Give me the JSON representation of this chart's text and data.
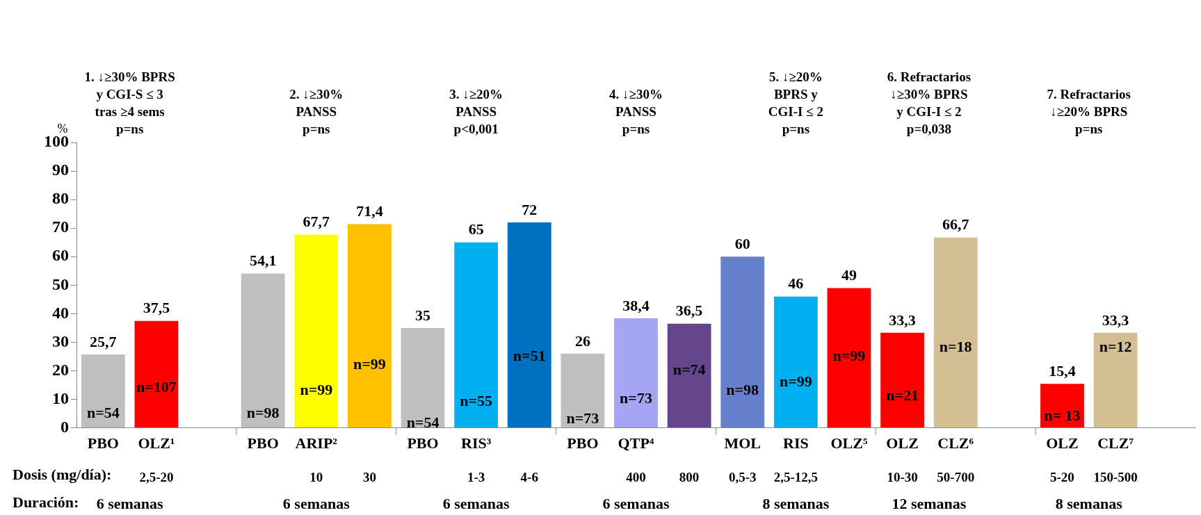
{
  "chart_data": {
    "type": "bar",
    "ylabel": "%",
    "categories": [
      "PBO",
      "OLZ¹",
      null,
      "PBO",
      "ARIP²",
      null,
      "PBO",
      "RIS³",
      null,
      "PBO",
      "QTP⁴",
      null,
      "MOL",
      "RIS",
      "OLZ⁵",
      "OLZ",
      "CLZ⁶",
      null,
      "OLZ",
      "CLZ⁷",
      null
    ],
    "values": [
      25.7,
      37.5,
      null,
      54.1,
      67.7,
      71.4,
      35,
      65,
      72,
      26,
      38.4,
      36.5,
      60,
      46,
      49,
      33.3,
      66.7,
      null,
      15.4,
      33.3,
      null
    ],
    "colors": [
      "#bfbfbf",
      "#ff0000",
      "#ffffff",
      "#bfbfbf",
      "#ffff00",
      "#ffc000",
      "#bfbfbf",
      "#00b0f0",
      "#0070c0",
      "#bfbfbf",
      "#a5a5f5",
      "#65458c",
      "#6680cc",
      "#00b0f0",
      "#ff0000",
      "#ff0000",
      "#d4bf94",
      "#ffffff",
      "#ff0000",
      "#d4bf94",
      "#ffffff"
    ],
    "value_labels": [
      "25,7",
      "37,5",
      null,
      "54,1",
      "67,7",
      "71,4",
      "35",
      "65",
      "72",
      "26",
      "38,4",
      "36,5",
      "60",
      "46",
      "49",
      "33,3",
      "66,7",
      null,
      "15,4",
      "33,3",
      null
    ],
    "ylim": [
      0,
      100
    ],
    "yticks": [
      0,
      10,
      20,
      30,
      40,
      50,
      60,
      70,
      80,
      90,
      100
    ],
    "grid": false,
    "legend": false,
    "annotations": [
      "1. ↓≥30% BPRS\ny CGI-S ≤ 3\ntras ≥4 sems\np=ns",
      "2. ↓≥30%\nPANSS\np=ns",
      "3. ↓≥20%\nPANSS\np<0,001",
      "4. ↓≥30%\nPANSS\np=ns",
      "5. ↓≥20%\nBPRS y\nCGI-I ≤ 2\np=ns",
      "6. Refractarios\n↓≥30% BPRS\ny CGI-I ≤ 2\np=0,038",
      "7. Refractarios\n↓≥20% BPRS\np=ns",
      "Dosis (mg/día):",
      "Duración:",
      "2,5-20",
      "10",
      "30",
      "1-3",
      "4-6",
      "400",
      "800",
      "0,5-3",
      "2,5-12,5",
      "10-30",
      "50-700",
      "5-20",
      "150-500",
      "6 semanas",
      "6 semanas",
      "6 semanas",
      "6 semanas",
      "8 semanas",
      "12 semanas",
      "8 semanas",
      "n=54",
      "n=107",
      "n=98",
      "n=99",
      "n=99",
      "n=54",
      "n=55",
      "n=51",
      "n=73",
      "n=73",
      "n=74",
      "n=98",
      "n=99",
      "n=99",
      "n=21",
      "n=18",
      "n= 13",
      "n=12"
    ]
  }
}
